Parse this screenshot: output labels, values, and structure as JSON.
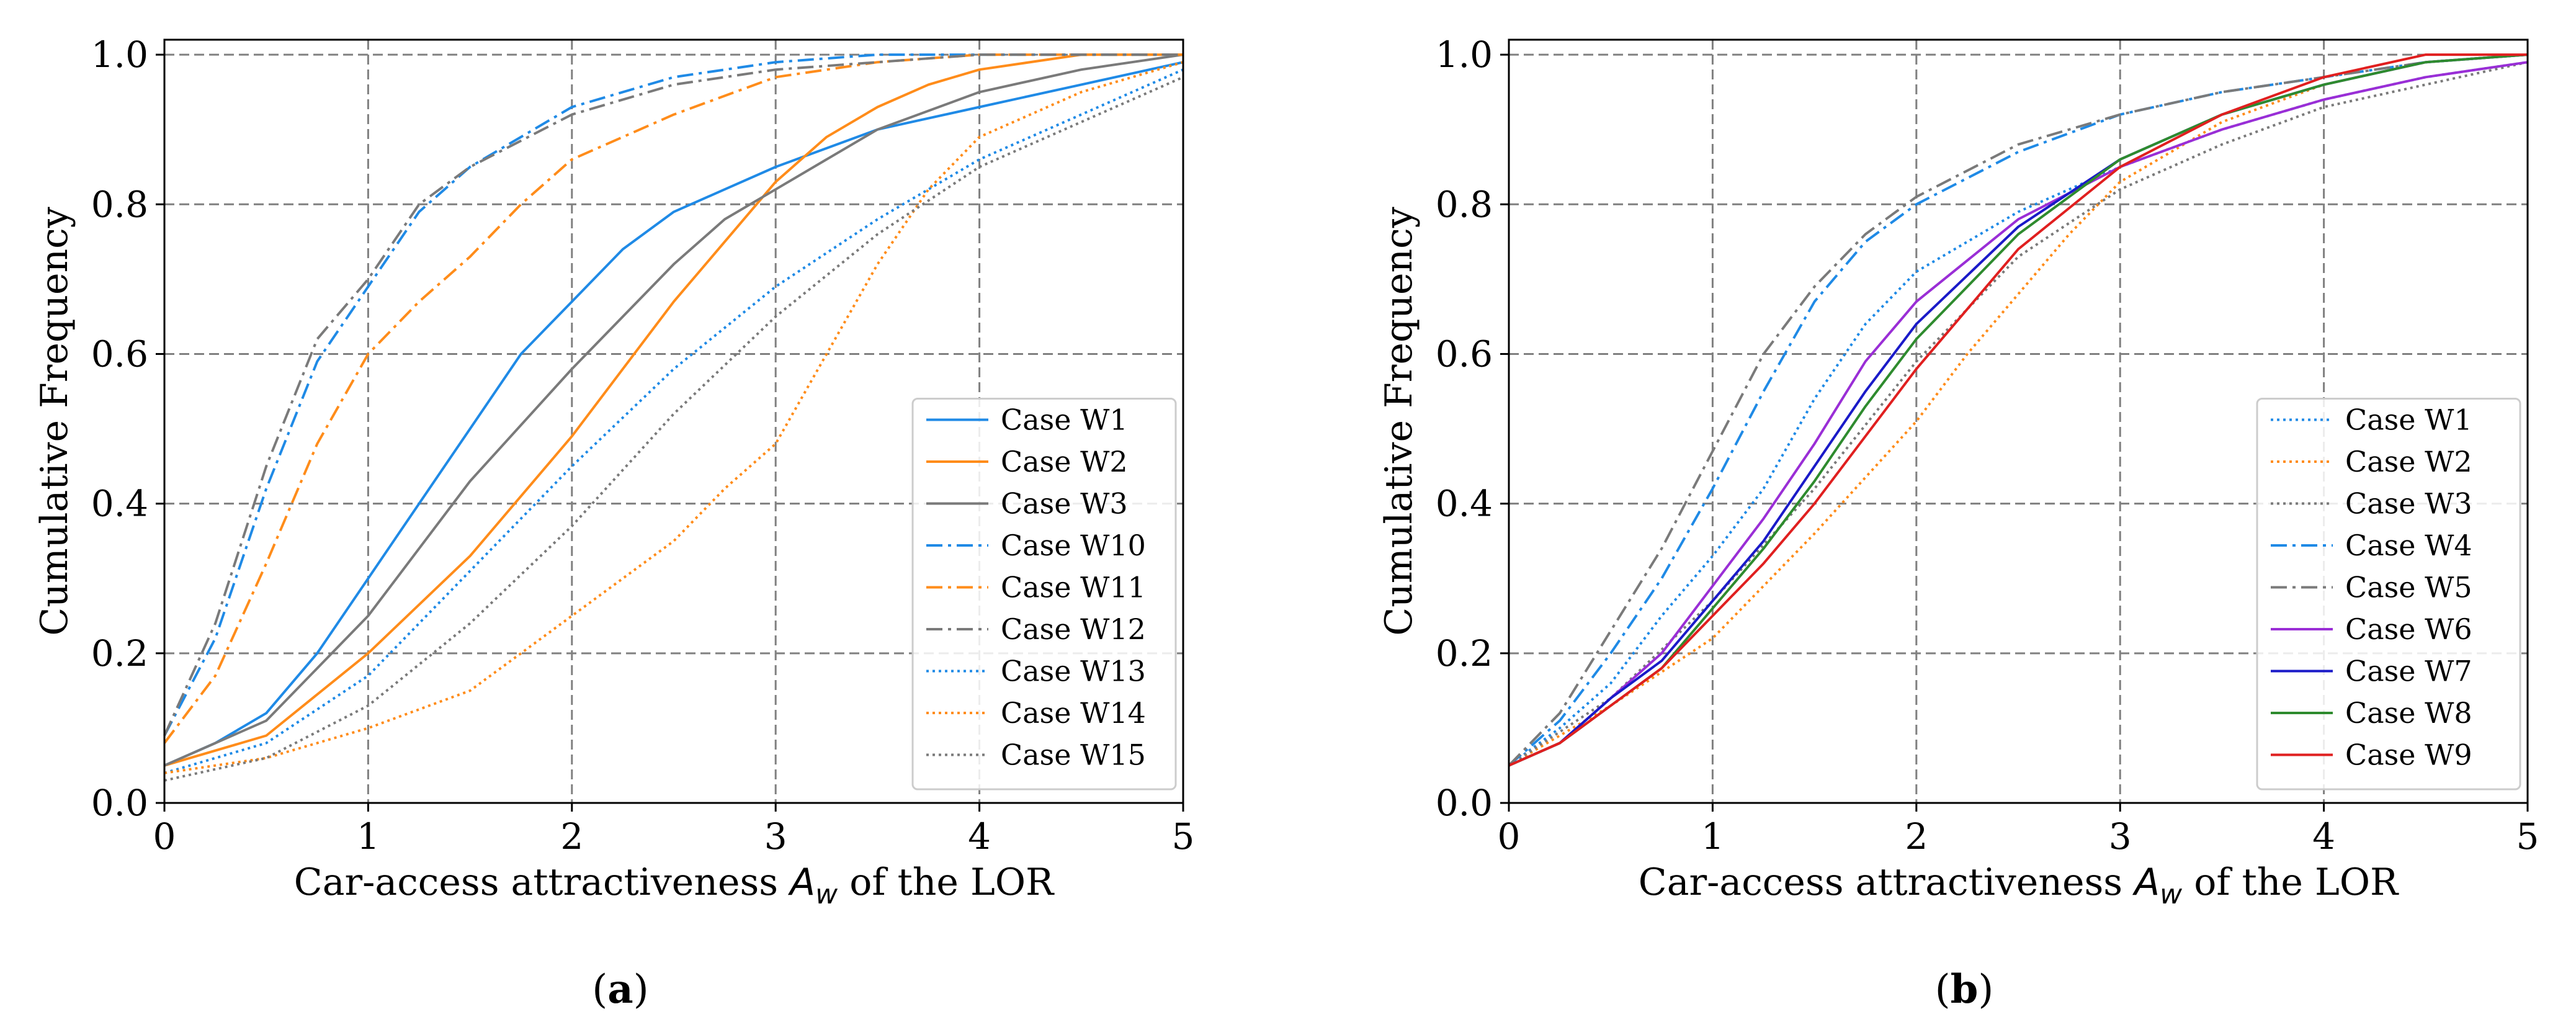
{
  "chart_data": [
    {
      "type": "line",
      "panel_label": "(a)",
      "xlabel": "Car-access attractiveness A_w of the LOR",
      "ylabel": "Cumulative Frequency",
      "xlim": [
        0,
        5
      ],
      "ylim": [
        0,
        1.02
      ],
      "xticks": [
        "0",
        "1",
        "2",
        "3",
        "4",
        "5"
      ],
      "yticks": [
        "0.0",
        "0.2",
        "0.4",
        "0.6",
        "0.8",
        "1.0"
      ],
      "grid": true,
      "legend_position": "lower-right",
      "series": [
        {
          "name": "Case W1",
          "color": "#1f8ae6",
          "style": "solid",
          "x": [
            0,
            0.25,
            0.5,
            0.75,
            1.0,
            1.25,
            1.5,
            1.75,
            2.0,
            2.25,
            2.5,
            2.75,
            3.0,
            3.5,
            4.0,
            4.5,
            5.0
          ],
          "y": [
            0.05,
            0.08,
            0.12,
            0.2,
            0.3,
            0.4,
            0.5,
            0.6,
            0.67,
            0.74,
            0.79,
            0.82,
            0.85,
            0.9,
            0.93,
            0.96,
            0.99
          ]
        },
        {
          "name": "Case W2",
          "color": "#ff8c1a",
          "style": "solid",
          "x": [
            0,
            0.5,
            1.0,
            1.5,
            2.0,
            2.25,
            2.5,
            2.75,
            3.0,
            3.25,
            3.5,
            3.75,
            4.0,
            4.5,
            5.0
          ],
          "y": [
            0.05,
            0.09,
            0.2,
            0.33,
            0.49,
            0.58,
            0.67,
            0.75,
            0.83,
            0.89,
            0.93,
            0.96,
            0.98,
            1.0,
            1.0
          ]
        },
        {
          "name": "Case W3",
          "color": "#7a7a7a",
          "style": "solid",
          "x": [
            0,
            0.5,
            1.0,
            1.5,
            2.0,
            2.25,
            2.5,
            2.75,
            3.0,
            3.25,
            3.5,
            4.0,
            4.5,
            5.0
          ],
          "y": [
            0.05,
            0.11,
            0.25,
            0.43,
            0.58,
            0.65,
            0.72,
            0.78,
            0.82,
            0.86,
            0.9,
            0.95,
            0.98,
            1.0
          ]
        },
        {
          "name": "Case W10",
          "color": "#1f8ae6",
          "style": "dashdot",
          "x": [
            0,
            0.25,
            0.5,
            0.75,
            1.0,
            1.25,
            1.5,
            2.0,
            2.5,
            3.0,
            3.5,
            4.0,
            5.0
          ],
          "y": [
            0.09,
            0.22,
            0.42,
            0.59,
            0.69,
            0.79,
            0.85,
            0.93,
            0.97,
            0.99,
            1.0,
            1.0,
            1.0
          ]
        },
        {
          "name": "Case W11",
          "color": "#ff8c1a",
          "style": "dashdot",
          "x": [
            0,
            0.25,
            0.5,
            0.75,
            1.0,
            1.25,
            1.5,
            1.75,
            2.0,
            2.5,
            3.0,
            3.5,
            4.0,
            5.0
          ],
          "y": [
            0.08,
            0.17,
            0.32,
            0.48,
            0.6,
            0.67,
            0.73,
            0.8,
            0.86,
            0.92,
            0.97,
            0.99,
            1.0,
            1.0
          ]
        },
        {
          "name": "Case W12",
          "color": "#7a7a7a",
          "style": "dashdot",
          "x": [
            0,
            0.25,
            0.5,
            0.75,
            1.0,
            1.25,
            1.5,
            2.0,
            2.5,
            3.0,
            3.5,
            4.0,
            5.0
          ],
          "y": [
            0.09,
            0.24,
            0.45,
            0.62,
            0.7,
            0.8,
            0.85,
            0.92,
            0.96,
            0.98,
            0.99,
            1.0,
            1.0
          ]
        },
        {
          "name": "Case W13",
          "color": "#1f8ae6",
          "style": "dotted",
          "x": [
            0,
            0.5,
            1.0,
            1.5,
            2.0,
            2.5,
            3.0,
            3.5,
            4.0,
            4.5,
            5.0
          ],
          "y": [
            0.04,
            0.08,
            0.17,
            0.31,
            0.45,
            0.58,
            0.69,
            0.78,
            0.86,
            0.92,
            0.98
          ]
        },
        {
          "name": "Case W14",
          "color": "#ff8c1a",
          "style": "dotted",
          "x": [
            0,
            0.5,
            1.0,
            1.5,
            2.0,
            2.5,
            2.75,
            3.0,
            3.25,
            3.5,
            3.75,
            4.0,
            4.5,
            5.0
          ],
          "y": [
            0.04,
            0.06,
            0.1,
            0.15,
            0.25,
            0.35,
            0.42,
            0.48,
            0.6,
            0.72,
            0.82,
            0.89,
            0.95,
            0.99
          ]
        },
        {
          "name": "Case W15",
          "color": "#7a7a7a",
          "style": "dotted",
          "x": [
            0,
            0.5,
            1.0,
            1.5,
            2.0,
            2.5,
            3.0,
            3.5,
            4.0,
            4.5,
            5.0
          ],
          "y": [
            0.03,
            0.06,
            0.13,
            0.24,
            0.37,
            0.52,
            0.65,
            0.76,
            0.85,
            0.91,
            0.97
          ]
        }
      ]
    },
    {
      "type": "line",
      "panel_label": "(b)",
      "xlabel": "Car-access attractiveness A_w of the LOR",
      "ylabel": "Cumulative Frequency",
      "xlim": [
        0,
        5
      ],
      "ylim": [
        0,
        1.02
      ],
      "xticks": [
        "0",
        "1",
        "2",
        "3",
        "4",
        "5"
      ],
      "yticks": [
        "0.0",
        "0.2",
        "0.4",
        "0.6",
        "0.8",
        "1.0"
      ],
      "grid": true,
      "legend_position": "lower-right",
      "series": [
        {
          "name": "Case W1",
          "color": "#1f8ae6",
          "style": "dotted",
          "x": [
            0,
            0.25,
            0.5,
            0.75,
            1.0,
            1.25,
            1.5,
            1.75,
            2.0,
            2.5,
            3.0,
            3.5,
            4.0,
            4.5,
            5.0
          ],
          "y": [
            0.05,
            0.1,
            0.16,
            0.25,
            0.33,
            0.42,
            0.54,
            0.64,
            0.71,
            0.79,
            0.85,
            0.9,
            0.94,
            0.97,
            0.99
          ]
        },
        {
          "name": "Case W2",
          "color": "#ff8c1a",
          "style": "dotted",
          "x": [
            0,
            0.5,
            1.0,
            1.5,
            2.0,
            2.25,
            2.5,
            2.75,
            3.0,
            3.5,
            4.0,
            4.5,
            5.0
          ],
          "y": [
            0.05,
            0.13,
            0.22,
            0.36,
            0.51,
            0.6,
            0.68,
            0.76,
            0.83,
            0.91,
            0.96,
            0.99,
            1.0
          ]
        },
        {
          "name": "Case W3",
          "color": "#7a7a7a",
          "style": "dotted",
          "x": [
            0,
            0.5,
            1.0,
            1.5,
            2.0,
            2.5,
            3.0,
            3.5,
            4.0,
            4.5,
            5.0
          ],
          "y": [
            0.05,
            0.14,
            0.27,
            0.42,
            0.59,
            0.73,
            0.82,
            0.88,
            0.93,
            0.96,
            0.99
          ]
        },
        {
          "name": "Case W4",
          "color": "#1f8ae6",
          "style": "dashdot",
          "x": [
            0,
            0.25,
            0.5,
            0.75,
            1.0,
            1.25,
            1.5,
            1.75,
            2.0,
            2.5,
            3.0,
            3.5,
            4.0,
            4.5,
            5.0
          ],
          "y": [
            0.05,
            0.11,
            0.2,
            0.3,
            0.42,
            0.55,
            0.67,
            0.75,
            0.8,
            0.87,
            0.92,
            0.95,
            0.97,
            0.99,
            1.0
          ]
        },
        {
          "name": "Case W5",
          "color": "#7a7a7a",
          "style": "dashdot",
          "x": [
            0,
            0.25,
            0.5,
            0.75,
            1.0,
            1.25,
            1.5,
            1.75,
            2.0,
            2.5,
            3.0,
            3.5,
            4.0,
            4.5,
            5.0
          ],
          "y": [
            0.05,
            0.12,
            0.23,
            0.34,
            0.47,
            0.6,
            0.69,
            0.76,
            0.81,
            0.88,
            0.92,
            0.95,
            0.97,
            0.99,
            1.0
          ]
        },
        {
          "name": "Case W6",
          "color": "#9a2ed6",
          "style": "solid",
          "x": [
            0,
            0.25,
            0.5,
            0.75,
            1.0,
            1.25,
            1.5,
            1.75,
            2.0,
            2.5,
            3.0,
            3.5,
            4.0,
            4.5,
            5.0
          ],
          "y": [
            0.05,
            0.08,
            0.14,
            0.2,
            0.29,
            0.38,
            0.48,
            0.59,
            0.67,
            0.78,
            0.85,
            0.9,
            0.94,
            0.97,
            0.99
          ]
        },
        {
          "name": "Case W7",
          "color": "#1a1ac8",
          "style": "solid",
          "x": [
            0,
            0.25,
            0.5,
            0.75,
            1.0,
            1.25,
            1.5,
            1.75,
            2.0,
            2.5,
            3.0,
            3.5,
            4.0,
            4.5,
            5.0
          ],
          "y": [
            0.05,
            0.08,
            0.14,
            0.19,
            0.27,
            0.35,
            0.45,
            0.55,
            0.64,
            0.77,
            0.86,
            0.92,
            0.96,
            0.99,
            1.0
          ]
        },
        {
          "name": "Case W8",
          "color": "#2e8b2e",
          "style": "solid",
          "x": [
            0,
            0.25,
            0.5,
            0.75,
            1.0,
            1.25,
            1.5,
            1.75,
            2.0,
            2.5,
            3.0,
            3.5,
            4.0,
            4.5,
            5.0
          ],
          "y": [
            0.05,
            0.08,
            0.13,
            0.18,
            0.26,
            0.34,
            0.43,
            0.53,
            0.62,
            0.76,
            0.86,
            0.92,
            0.96,
            0.99,
            1.0
          ]
        },
        {
          "name": "Case W9",
          "color": "#e01f1f",
          "style": "solid",
          "x": [
            0,
            0.25,
            0.5,
            0.75,
            1.0,
            1.25,
            1.5,
            1.75,
            2.0,
            2.5,
            3.0,
            3.5,
            4.0,
            4.5,
            5.0
          ],
          "y": [
            0.05,
            0.08,
            0.13,
            0.18,
            0.25,
            0.32,
            0.4,
            0.49,
            0.58,
            0.74,
            0.85,
            0.92,
            0.97,
            1.0,
            1.0
          ]
        }
      ]
    }
  ]
}
